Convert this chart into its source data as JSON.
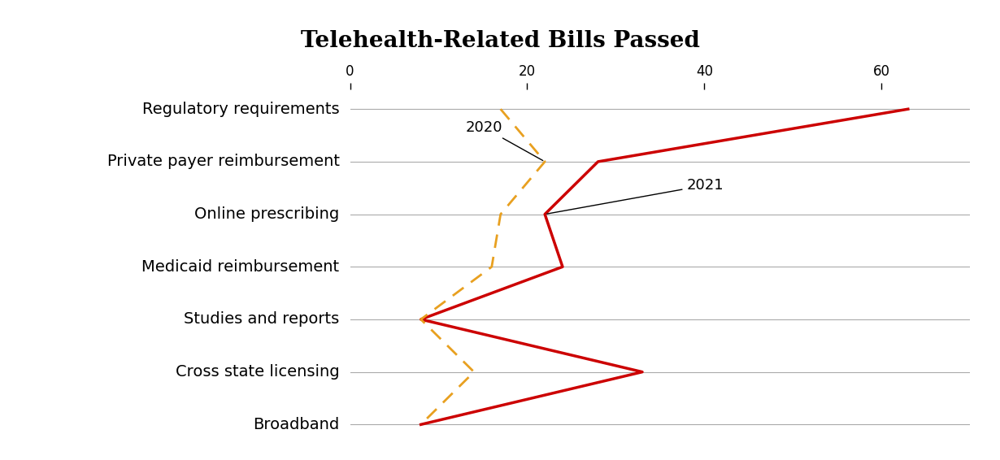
{
  "title": "Telehealth-Related Bills Passed",
  "categories": [
    "Regulatory requirements",
    "Private payer reimbursement",
    "Online prescribing",
    "Medicaid reimbursement",
    "Studies and reports",
    "Cross state licensing",
    "Broadband"
  ],
  "values_2021": [
    63,
    28,
    22,
    24,
    8,
    33,
    8
  ],
  "values_2020": [
    17,
    22,
    17,
    16,
    8,
    14,
    8
  ],
  "color_2021": "#cc0000",
  "color_2020": "#e8a020",
  "xlim": [
    0,
    70
  ],
  "xticks": [
    0,
    20,
    40,
    60
  ],
  "title_fontsize": 20,
  "label_fontsize": 14,
  "background_title": "#d9d9d9",
  "background_plot": "#ffffff",
  "annotation_2020": "2020",
  "annotation_2021": "2021"
}
